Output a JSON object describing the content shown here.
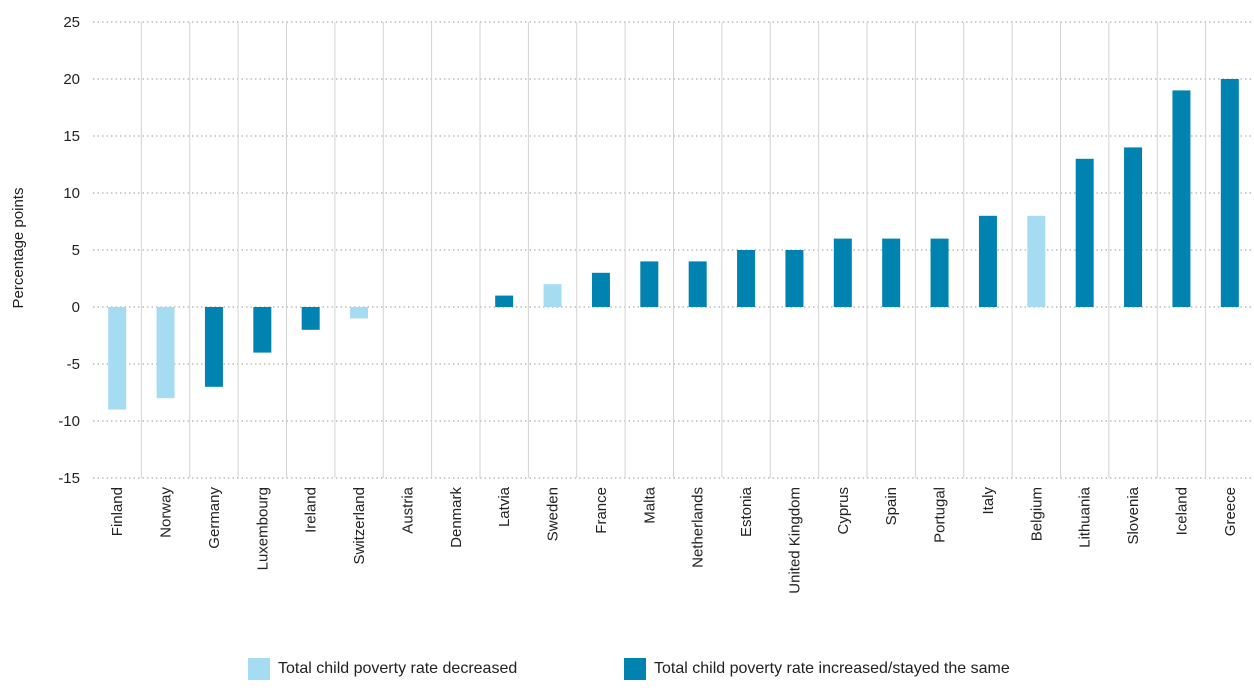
{
  "chart_data": {
    "type": "bar",
    "title": "",
    "xlabel": "",
    "ylabel": "Percentage points",
    "ylim": [
      -15,
      25
    ],
    "yticks": [
      25,
      20,
      15,
      10,
      5,
      0,
      -5,
      -10,
      -15
    ],
    "grid": true,
    "legend_position": "bottom",
    "categories": [
      "Finland",
      "Norway",
      "Germany",
      "Luxembourg",
      "Ireland",
      "Switzerland",
      "Austria",
      "Denmark",
      "Latvia",
      "Sweden",
      "France",
      "Malta",
      "Netherlands",
      "Estonia",
      "United Kingdom",
      "Cyprus",
      "Spain",
      "Portugal",
      "Italy",
      "Belgium",
      "Lithuania",
      "Slovenia",
      "Iceland",
      "Greece"
    ],
    "series": [
      {
        "name": "Total child poverty rate decreased",
        "color": "#a6dcf2",
        "values": [
          -9,
          -8,
          null,
          null,
          null,
          -1,
          null,
          null,
          null,
          2,
          null,
          null,
          null,
          null,
          null,
          null,
          null,
          null,
          null,
          8,
          null,
          null,
          null,
          null
        ]
      },
      {
        "name": "Total child poverty rate increased/stayed the same",
        "color": "#0083b0",
        "values": [
          null,
          null,
          -7,
          -4,
          -2,
          null,
          null,
          null,
          1,
          null,
          3,
          4,
          4,
          5,
          5,
          6,
          6,
          6,
          8,
          null,
          13,
          14,
          19,
          20
        ]
      }
    ]
  }
}
